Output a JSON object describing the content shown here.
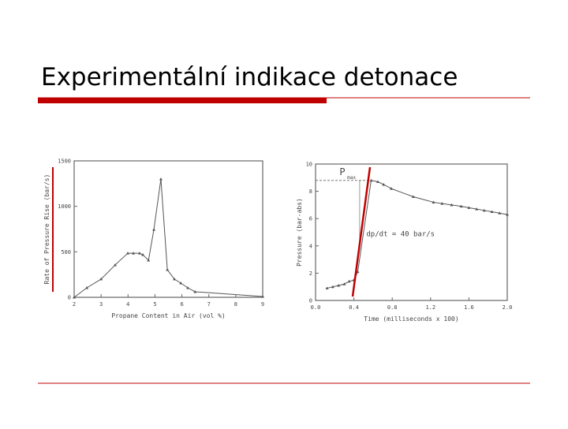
{
  "slide": {
    "title": "Experimentální indikace detonace"
  },
  "chart_data": [
    {
      "type": "line",
      "x_label": "Propane Content in Air (vol %)",
      "y_label": "Rate of Pressure Rise (bar/s)",
      "x": [
        2.0,
        2.47,
        3.0,
        3.52,
        3.99,
        4.2,
        4.43,
        4.55,
        4.76,
        4.96,
        5.22,
        5.46,
        5.72,
        5.96,
        6.22,
        6.49,
        9.0
      ],
      "series": [
        {
          "color": "#555555",
          "values": [
            0,
            104,
            200,
            355,
            485,
            485,
            485,
            468,
            407,
            745,
            1300,
            303,
            200,
            156,
            104,
            61,
            9
          ]
        }
      ],
      "xlim": [
        2,
        9
      ],
      "xticks": [
        2,
        3,
        4,
        5,
        6,
        7,
        8,
        9
      ],
      "ylim": [
        0,
        1500
      ],
      "yticks": [
        0,
        500,
        1000,
        1500
      ],
      "grid": false
    },
    {
      "type": "line",
      "x_label": "Time (milliseconds x 100)",
      "y_label": "Pressure (bar-abs)",
      "x": [
        0.12,
        0.18,
        0.24,
        0.3,
        0.35,
        0.4,
        0.44,
        0.58,
        0.65,
        0.71,
        0.79,
        1.02,
        1.23,
        1.32,
        1.42,
        1.52,
        1.6,
        1.68,
        1.76,
        1.84,
        1.92,
        2.0
      ],
      "series": [
        {
          "color": "#555555",
          "values": [
            0.9,
            1.0,
            1.1,
            1.2,
            1.4,
            1.5,
            2.1,
            8.8,
            8.7,
            8.5,
            8.2,
            7.6,
            7.2,
            7.1,
            7.0,
            6.9,
            6.8,
            6.7,
            6.6,
            6.5,
            6.4,
            6.3
          ]
        }
      ],
      "xlim": [
        0,
        2
      ],
      "xticks": [
        {
          "value": 0,
          "label": "0.0"
        },
        0.4,
        0.8,
        1.2,
        1.6,
        {
          "value": 2,
          "label": "2.0"
        }
      ],
      "ylim": [
        0,
        10
      ],
      "yticks": [
        0,
        2,
        4,
        6,
        8,
        10
      ],
      "grid": false,
      "annotations": [
        "P",
        "max",
        "dp/dt = 40 bar/s"
      ]
    }
  ]
}
